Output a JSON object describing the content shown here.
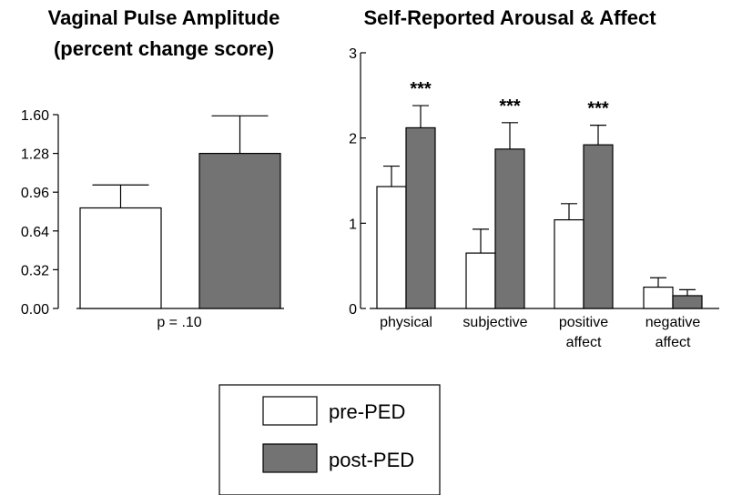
{
  "colors": {
    "pre": "#ffffff",
    "post": "#737373",
    "outline": "#000000"
  },
  "legend": [
    {
      "label": "pre-PED",
      "color": "#ffffff"
    },
    {
      "label": "post-PED",
      "color": "#737373"
    }
  ],
  "chart_data": [
    {
      "type": "bar",
      "title": "Vaginal Pulse Amplitude",
      "subtitle": "(percent change score)",
      "xlabel": "",
      "ylabel": "",
      "ylim": [
        0,
        1.6
      ],
      "yticks": [
        "0.00",
        "0.32",
        "0.64",
        "0.96",
        "1.28",
        "1.60"
      ],
      "categories": [
        ""
      ],
      "series": [
        {
          "name": "pre-PED",
          "values": [
            0.83
          ],
          "error": [
            0.19
          ]
        },
        {
          "name": "post-PED",
          "values": [
            1.28
          ],
          "error": [
            0.31
          ]
        }
      ],
      "annotation": "p = .10"
    },
    {
      "type": "bar",
      "title": "Self-Reported Arousal & Affect",
      "xlabel": "",
      "ylabel": "",
      "ylim": [
        0,
        3
      ],
      "yticks": [
        "0",
        "1",
        "2",
        "3"
      ],
      "categories": [
        [
          "physical"
        ],
        [
          "subjective"
        ],
        [
          "positive",
          "affect"
        ],
        [
          "negative",
          "affect"
        ]
      ],
      "series": [
        {
          "name": "pre-PED",
          "values": [
            1.43,
            0.65,
            1.04,
            0.25
          ],
          "error": [
            0.24,
            0.28,
            0.19,
            0.11
          ]
        },
        {
          "name": "post-PED",
          "values": [
            2.12,
            1.87,
            1.92,
            0.15
          ],
          "error": [
            0.26,
            0.31,
            0.23,
            0.07
          ]
        }
      ],
      "significance": [
        "***",
        "***",
        "***",
        ""
      ]
    }
  ]
}
